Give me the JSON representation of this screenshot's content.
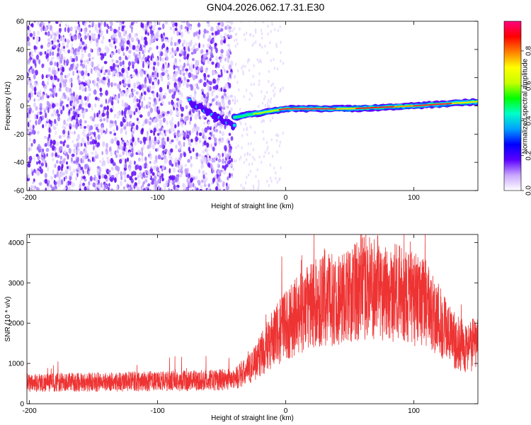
{
  "title": "GN04.2026.062.17.31.E30",
  "chart_data": [
    {
      "type": "heatmap",
      "id": "spectrogram",
      "title": "GN04.2026.062.17.31.E30",
      "xlabel": "Height of straight line (km)",
      "ylabel": "Frequency (Hz)",
      "xlim": [
        -202,
        150
      ],
      "ylim": [
        -60,
        60
      ],
      "xticks": [
        -200,
        -100,
        0,
        100
      ],
      "yticks": [
        -60,
        -40,
        -20,
        0,
        20,
        40,
        60
      ],
      "noise_region_x": [
        -202,
        -42
      ],
      "dispersion_track_x": [
        -75,
        -40
      ],
      "dispersion_track_y": [
        3,
        -15
      ],
      "carrier_track_x": [
        -40,
        0,
        50,
        100,
        150
      ],
      "carrier_track_y": [
        -8,
        -2,
        -2,
        0,
        3
      ],
      "colorbar": {
        "label": "Normalized spectral amplitude",
        "range": [
          0,
          0.97
        ],
        "ticks": [
          "0.0",
          "0.2",
          "0.4",
          "0.6",
          "0.8"
        ],
        "colors": [
          "#ffffff",
          "#c9a6ff",
          "#5a00ff",
          "#0000ff",
          "#00a0ff",
          "#00ffc8",
          "#00ff00",
          "#c8ff00",
          "#ffff00",
          "#ff8000",
          "#ff0000",
          "#ff0080"
        ]
      }
    },
    {
      "type": "line",
      "id": "snr",
      "xlabel": "Height of straight line (km)",
      "ylabel": "SNR (10 * v/v)",
      "xlim": [
        -202,
        150
      ],
      "ylim": [
        0,
        4200
      ],
      "xticks": [
        -200,
        -100,
        0,
        100
      ],
      "yticks": [
        0,
        1000,
        2000,
        3000,
        4000
      ],
      "series": [
        {
          "name": "SNR",
          "color": "#ee3333",
          "x": [
            -202,
            -150,
            -100,
            -60,
            -40,
            -30,
            -20,
            -10,
            0,
            10,
            20,
            30,
            40,
            50,
            60,
            70,
            80,
            90,
            100,
            110,
            120,
            130,
            140,
            150
          ],
          "y": [
            520,
            540,
            560,
            580,
            620,
            800,
            1200,
            1600,
            1950,
            2200,
            2450,
            2550,
            2600,
            2700,
            2850,
            2900,
            2800,
            2700,
            2600,
            2450,
            2100,
            1600,
            1400,
            1500
          ]
        }
      ]
    }
  ]
}
